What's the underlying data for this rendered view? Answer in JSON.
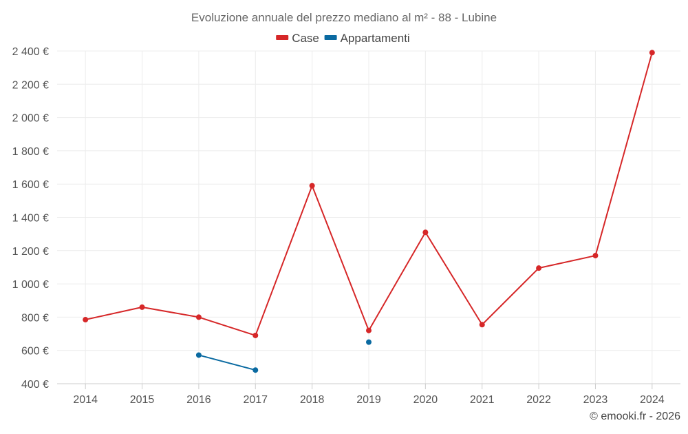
{
  "chart_data": {
    "type": "line",
    "title": "Evoluzione annuale del prezzo mediano al m² - 88 - Lubine",
    "x": [
      "2014",
      "2015",
      "2016",
      "2017",
      "2018",
      "2019",
      "2020",
      "2021",
      "2022",
      "2023",
      "2024"
    ],
    "series": [
      {
        "name": "Case",
        "color": "#d62728",
        "values": [
          785,
          860,
          800,
          690,
          1590,
          720,
          1310,
          755,
          1095,
          1170,
          2390
        ]
      },
      {
        "name": "Appartamenti",
        "color": "#0a6aa1",
        "values": [
          null,
          null,
          572,
          482,
          null,
          650,
          null,
          null,
          null,
          null,
          null
        ]
      }
    ],
    "ylim": [
      400,
      2400
    ],
    "yticks": [
      400,
      600,
      800,
      1000,
      1200,
      1400,
      1600,
      1800,
      2000,
      2200,
      2400
    ],
    "ytick_labels": [
      "400 €",
      "600 €",
      "800 €",
      "1 000 €",
      "1 200 €",
      "1 400 €",
      "1 600 €",
      "1 800 €",
      "2 000 €",
      "2 200 €",
      "2 400 €"
    ],
    "grid": true,
    "legend_position": "top-center"
  },
  "credit": "© emooki.fr - 2026"
}
